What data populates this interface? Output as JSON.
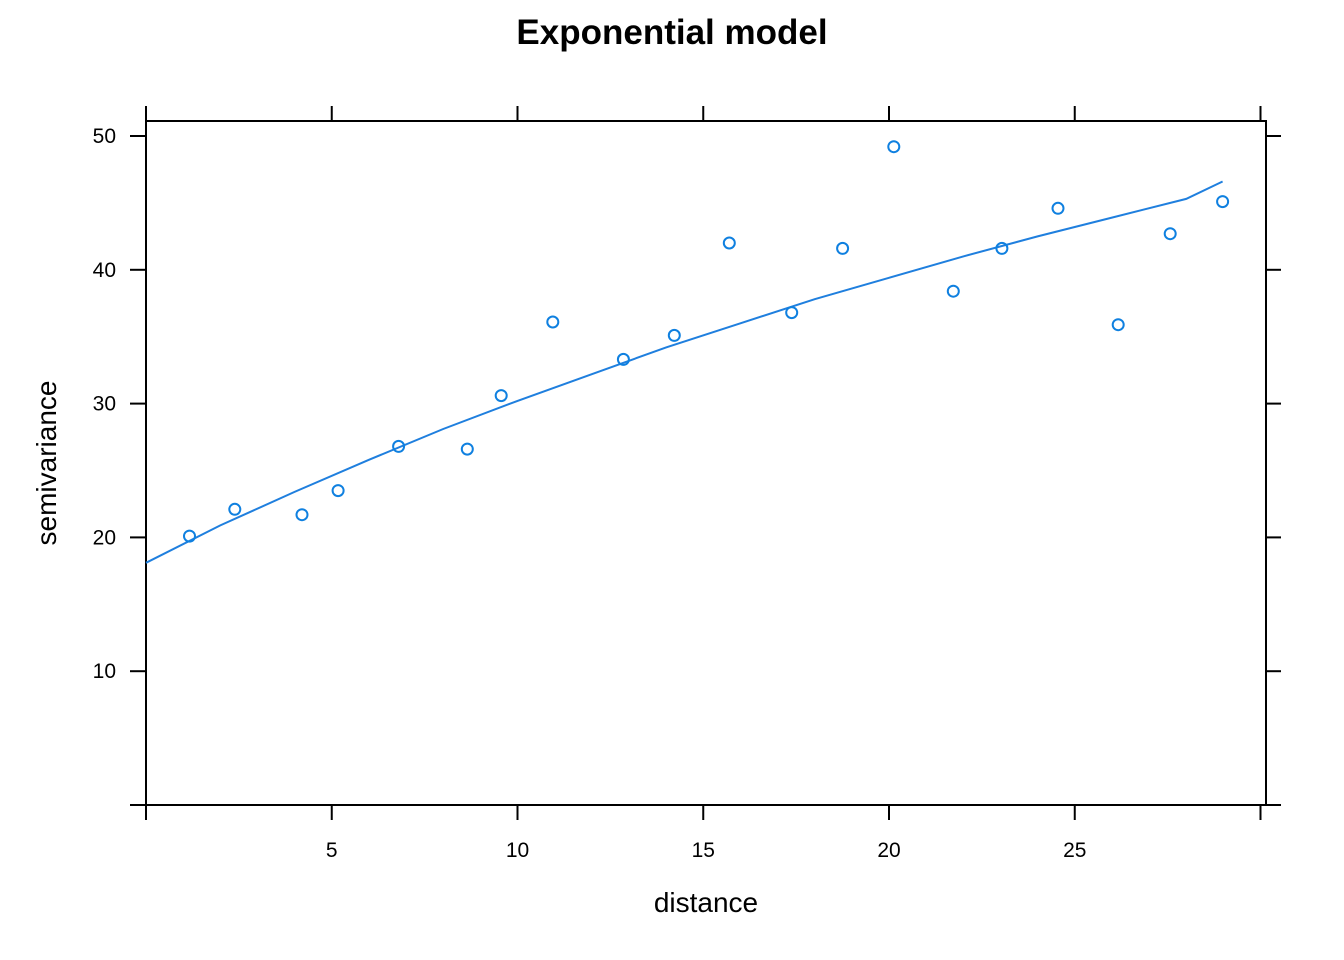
{
  "chart_data": {
    "type": "scatter",
    "title": "Exponential model",
    "xlabel": "distance",
    "ylabel": "semivariance",
    "xlim": [
      0,
      30
    ],
    "ylim": [
      0,
      51
    ],
    "x_ticks": [
      5,
      10,
      15,
      20,
      25
    ],
    "y_ticks": [
      10,
      20,
      30,
      40,
      50
    ],
    "grid": false,
    "legend": "none",
    "colors": {
      "points": "#0f80e0",
      "line": "#1f7fde",
      "axes": "#000000"
    },
    "series": [
      {
        "kind": "points",
        "marker": "open-circle",
        "x": [
          1.17,
          2.39,
          4.2,
          5.17,
          6.8,
          8.65,
          9.56,
          10.95,
          12.85,
          14.22,
          15.7,
          17.38,
          18.75,
          20.13,
          21.73,
          23.04,
          24.55,
          26.17,
          27.57,
          28.98
        ],
        "y": [
          20.1,
          22.1,
          21.7,
          23.5,
          26.8,
          26.6,
          30.6,
          36.1,
          33.3,
          35.1,
          42.0,
          36.8,
          41.6,
          49.2,
          38.4,
          41.6,
          44.6,
          35.9,
          42.7,
          45.1
        ]
      },
      {
        "kind": "line",
        "x": [
          0,
          2,
          4,
          6,
          8,
          10,
          12,
          14,
          16,
          18,
          20,
          22,
          24,
          26,
          28,
          28.98
        ],
        "y": [
          18.1,
          20.9,
          23.4,
          25.8,
          28.1,
          30.2,
          32.2,
          34.2,
          36.0,
          37.8,
          39.4,
          41.0,
          42.5,
          43.9,
          45.3,
          46.6
        ]
      }
    ]
  }
}
